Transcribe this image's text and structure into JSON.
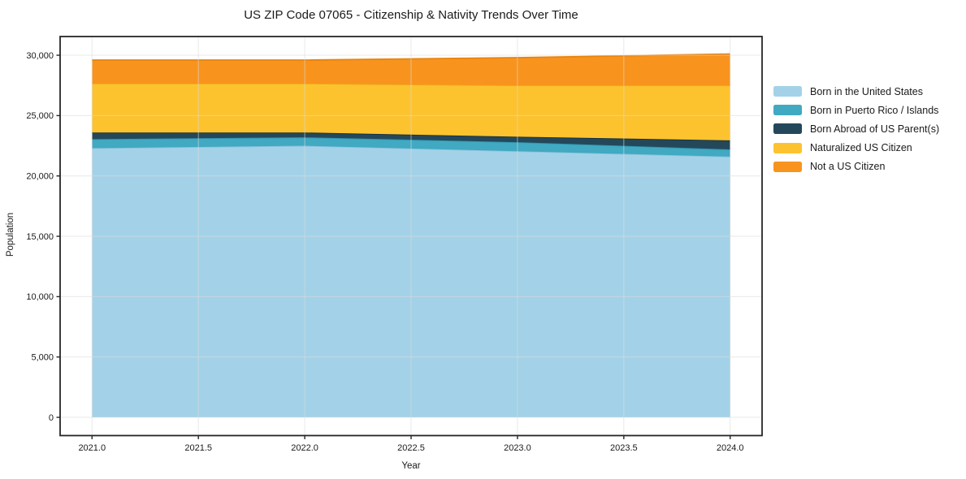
{
  "chart_data": {
    "type": "area",
    "stacked": true,
    "title": "US ZIP Code 07065 - Citizenship & Nativity Trends Over Time",
    "xlabel": "Year",
    "ylabel": "Population",
    "x": [
      2021,
      2022,
      2023,
      2024
    ],
    "x_tick_values": [
      2021.0,
      2021.5,
      2022.0,
      2022.5,
      2023.0,
      2023.5,
      2024.0
    ],
    "x_tick_labels": [
      "2021.0",
      "2021.5",
      "2022.0",
      "2022.5",
      "2023.0",
      "2023.5",
      "2024.0"
    ],
    "y_tick_values": [
      0,
      5000,
      10000,
      15000,
      20000,
      25000,
      30000
    ],
    "y_tick_labels": [
      "0",
      "5,000",
      "10,000",
      "15,000",
      "20,000",
      "25,000",
      "30,000"
    ],
    "xlim": [
      2020.85,
      2024.15
    ],
    "ylim": [
      -1510,
      31550
    ],
    "grid": true,
    "grid_color": "#dadada",
    "frame_color": "#262626",
    "legend_position": "outside-right",
    "series": [
      {
        "name": "Born in the United States",
        "color": "#a3d2e8",
        "edge": "#8cc2dc",
        "values": [
          22300,
          22500,
          22050,
          21600
        ]
      },
      {
        "name": "Born in Puerto Rico / Islands",
        "color": "#41a9c2",
        "edge": "#2f93ad",
        "values": [
          750,
          700,
          750,
          600
        ]
      },
      {
        "name": "Born Abroad of US Parent(s)",
        "color": "#24485a",
        "edge": "#16303f",
        "values": [
          550,
          400,
          450,
          750
        ]
      },
      {
        "name": "Naturalized US Citizen",
        "color": "#fdc32f",
        "edge": "#edac18",
        "values": [
          4050,
          4050,
          4250,
          4550
        ]
      },
      {
        "name": "Not a US Citizen",
        "color": "#f8941e",
        "edge": "#e8830e",
        "values": [
          1950,
          1950,
          2300,
          2600
        ]
      }
    ],
    "totals_by_year": [
      29600,
      29600,
      29800,
      30100
    ]
  }
}
